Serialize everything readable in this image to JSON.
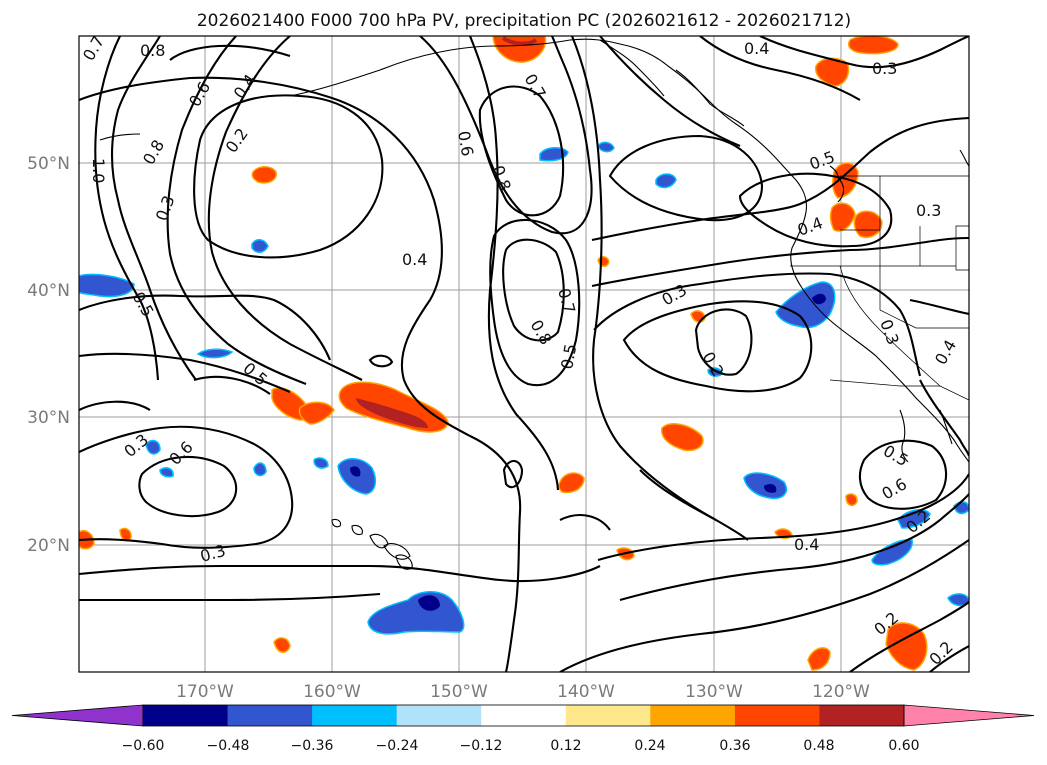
{
  "title": "2026021400 F000 700 hPa PV, precipitation PC (2026021612 - 2026021712)",
  "map": {
    "lat_labels": [
      "50°N",
      "40°N",
      "30°N",
      "20°N"
    ],
    "lon_labels": [
      "170°W",
      "160°W",
      "150°W",
      "140°W",
      "130°W",
      "120°W"
    ],
    "contour_labels": [
      "0.7",
      "0.8",
      "0.6",
      "0.4",
      "1.0",
      "0.8",
      "0.2",
      "0.3",
      "0.5",
      "0.5",
      "0.6",
      "0.3",
      "0.4",
      "0.6",
      "0.8",
      "0.7",
      "0.8",
      "0.7",
      "0.5",
      "0.4",
      "0.3",
      "0.3",
      "0.2",
      "0.5",
      "0.4",
      "0.3",
      "0.3",
      "0.4",
      "0.5",
      "0.6",
      "0.2",
      "0.4",
      "0.2",
      "0.2",
      "0.3"
    ]
  },
  "colorbar": {
    "ticks": [
      "−0.60",
      "−0.48",
      "−0.36",
      "−0.24",
      "−0.12",
      "0.12",
      "0.24",
      "0.36",
      "0.48",
      "0.60"
    ],
    "colors": [
      "#8f33cc",
      "#00008b",
      "#3156d0",
      "#00bfff",
      "#b0e2fa",
      "#ffffff",
      "#ffe88c",
      "#ffa500",
      "#ff4500",
      "#b22222",
      "#ff82ab"
    ]
  }
}
